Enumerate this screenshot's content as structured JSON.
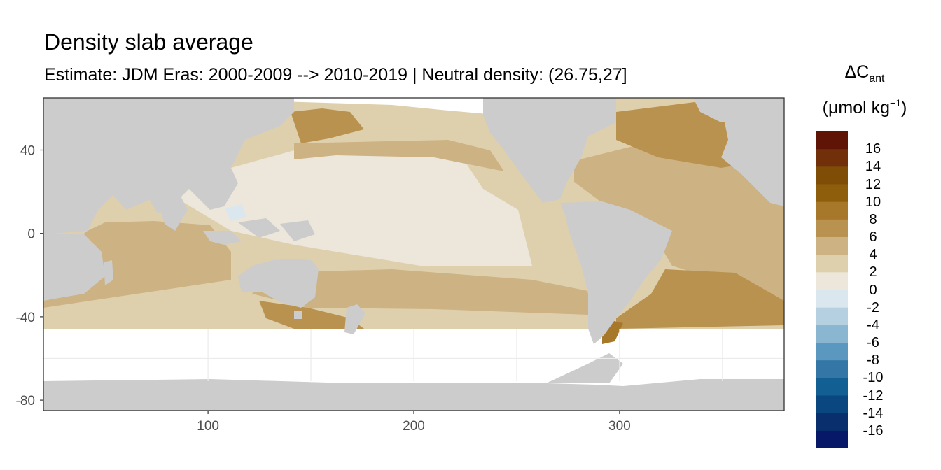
{
  "title": "Density slab average",
  "subtitle": "Estimate: JDM Eras: 2000-2009 --> 2010-2019 | Neutral density: (26.75,27]",
  "legend": {
    "title_main": "ΔC",
    "title_sub": "ant",
    "unit_open": "(μmol kg",
    "unit_sup": "−1",
    "unit_close": ")",
    "labels": [
      "16",
      "14",
      "12",
      "10",
      "8",
      "6",
      "4",
      "2",
      "0",
      "-2",
      "-4",
      "-6",
      "-8",
      "-10",
      "-12",
      "-14",
      "-16"
    ],
    "colors": [
      "#5f1405",
      "#71300a",
      "#7f4d06",
      "#8f5e0c",
      "#a8782a",
      "#b9924f",
      "#cdb283",
      "#dfd0ad",
      "#ece6db",
      "#dbe7ee",
      "#b5d0e1",
      "#8ab6d2",
      "#5b98bf",
      "#3477a7",
      "#125f93",
      "#0a467f",
      "#092f6c",
      "#071868"
    ]
  },
  "axes": {
    "x_ticks": [
      100,
      200,
      300
    ],
    "y_ticks": [
      40,
      0,
      -40,
      -80
    ],
    "x_range": [
      20,
      380
    ],
    "y_range": [
      -85,
      65
    ]
  },
  "map_colors": {
    "land": "#cccccc",
    "no_data": "#ffffff",
    "grid": "#ebebeb",
    "frame": "#333333",
    "lvl_2_4": "#dfd0ad",
    "lvl_4_6": "#cdb283",
    "lvl_6_8": "#b9924f",
    "lvl_8_10": "#a8782a",
    "lvl_0_2": "#ece6db",
    "lvl_m2_0": "#dbe7ee"
  }
}
